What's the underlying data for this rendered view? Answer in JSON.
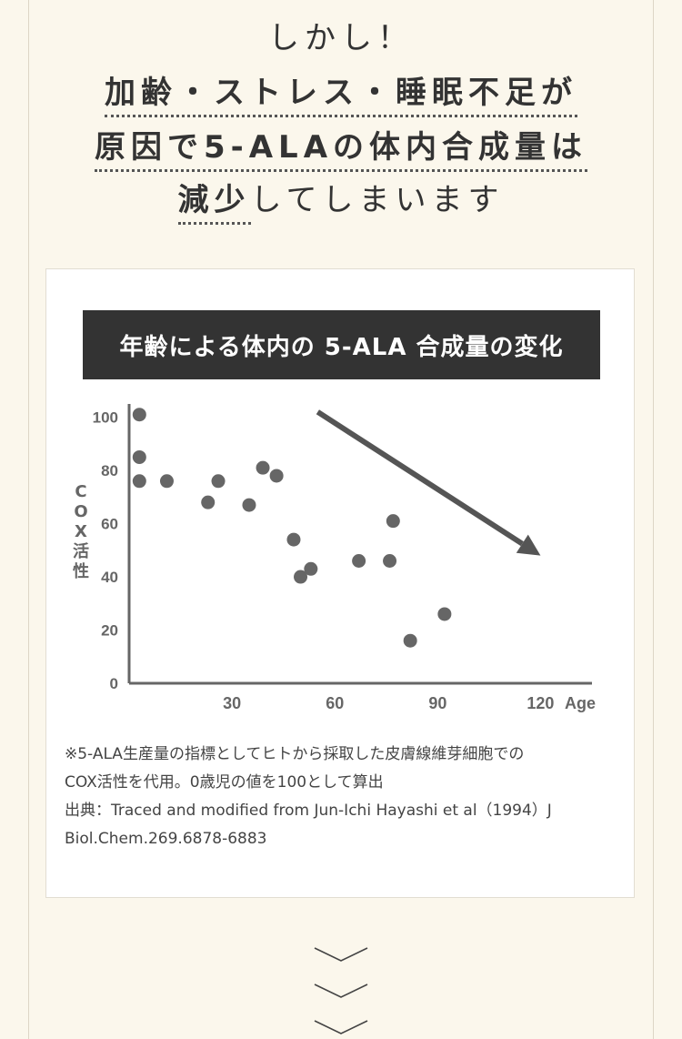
{
  "headline": {
    "line1": "しかし！",
    "line2": "加齢・ストレス・睡眠不足が",
    "line3_emph": "原因で5-ALAの体内合成量は",
    "line4_emph": "減少",
    "line4_rest": "してしまいます"
  },
  "card": {
    "title": "年齢による体内の 5-ALA 合成量の変化",
    "notes": [
      "※5-ALA生産量の指標としてヒトから採取した皮膚線維芽細胞での",
      "COX活性を代用。0歳児の値を100として算出",
      "出典：Traced and modified from Jun-Ichi Hayashi et al（1994）J",
      "Biol.Chem.269.6878-6883"
    ]
  },
  "chart_data": {
    "type": "scatter",
    "xlabel": "Age",
    "ylabel": "COX活性",
    "xlim": [
      0,
      135
    ],
    "ylim": [
      0,
      105
    ],
    "xticks": [
      "30",
      "60",
      "90",
      "120"
    ],
    "yticks": [
      "0",
      "20",
      "40",
      "60",
      "80",
      "100"
    ],
    "points": [
      {
        "x": 3,
        "y": 101
      },
      {
        "x": 3,
        "y": 85
      },
      {
        "x": 3,
        "y": 76
      },
      {
        "x": 11,
        "y": 76
      },
      {
        "x": 23,
        "y": 68
      },
      {
        "x": 26,
        "y": 76
      },
      {
        "x": 35,
        "y": 67
      },
      {
        "x": 39,
        "y": 81
      },
      {
        "x": 43,
        "y": 78
      },
      {
        "x": 48,
        "y": 54
      },
      {
        "x": 50,
        "y": 40
      },
      {
        "x": 53,
        "y": 43
      },
      {
        "x": 67,
        "y": 46
      },
      {
        "x": 76,
        "y": 46
      },
      {
        "x": 77,
        "y": 61
      },
      {
        "x": 82,
        "y": 16
      },
      {
        "x": 92,
        "y": 26
      }
    ],
    "trend_arrow": {
      "from": {
        "x": 55,
        "y": 102
      },
      "to": {
        "x": 120,
        "y": 48
      }
    },
    "grid": false,
    "colors": {
      "point": "#666666",
      "arrow": "#555555",
      "axis": "#666666"
    }
  }
}
